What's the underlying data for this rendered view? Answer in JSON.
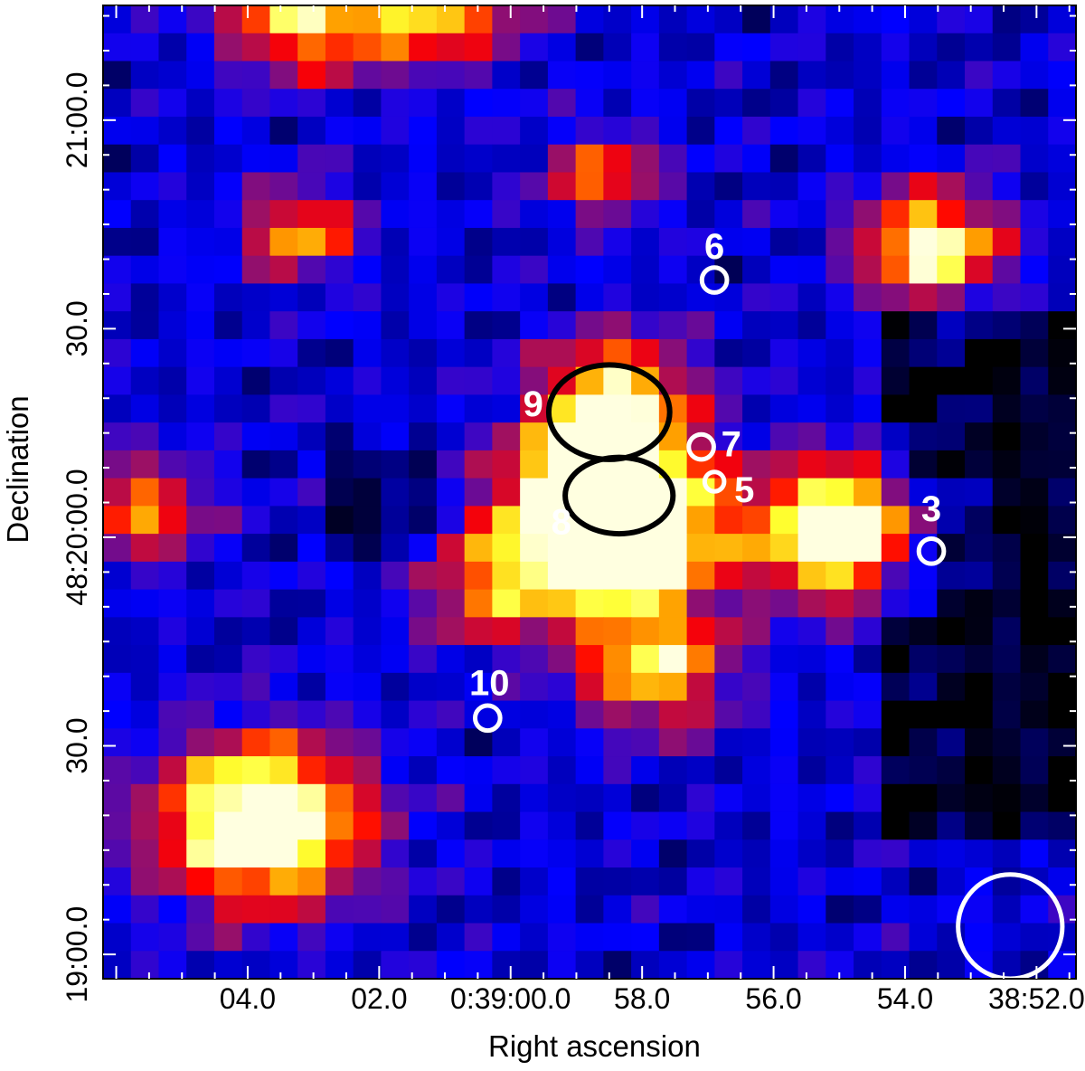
{
  "chart_data": {
    "type": "heatmap",
    "title": "",
    "xlabel": "Right ascension",
    "ylabel": "Declination",
    "x_ticks": [
      {
        "label": "04.0",
        "ra_sec": 4.0
      },
      {
        "label": "02.0",
        "ra_sec": 2.0
      },
      {
        "label": "0:39:00.0",
        "ra_sec": 0.0
      },
      {
        "label": "58.0",
        "ra_sec": -2.0
      },
      {
        "label": "56.0",
        "ra_sec": -4.0
      },
      {
        "label": "54.0",
        "ra_sec": -6.0
      },
      {
        "label": "38:52.0",
        "ra_sec": -8.0
      }
    ],
    "y_ticks": [
      {
        "label": "21:00.0",
        "dec_arcsec": 60
      },
      {
        "label": "30.0",
        "dec_arcsec": 30
      },
      {
        "label": "48:20:00.0",
        "dec_arcsec": 0
      },
      {
        "label": "30.0",
        "dec_arcsec": -30
      },
      {
        "label": "19:00.0",
        "dec_arcsec": -60
      }
    ],
    "xlim_ra_sec": [
      6.2,
      -8.6
    ],
    "ylim_dec_arcsec": [
      -63.5,
      76.5
    ],
    "colormap": [
      "#000000",
      "#0000ff",
      "#a01060",
      "#ff0000",
      "#ffa000",
      "#ffff30",
      "#ffffe0"
    ],
    "colormap_stops": [
      0,
      0.28,
      0.5,
      0.64,
      0.78,
      0.9,
      1
    ],
    "hotspots": [
      {
        "ra_sec": 3.8,
        "dec_arcsec": -41,
        "peak": 1.0,
        "sigma": 1.1
      },
      {
        "ra_sec": -1.6,
        "dec_arcsec": 0,
        "peak": 1.0,
        "sigma": 1.05
      },
      {
        "ra_sec": -1.4,
        "dec_arcsec": 8,
        "peak": 0.85,
        "sigma": 0.9
      },
      {
        "ra_sec": -5.0,
        "dec_arcsec": 1,
        "peak": 0.97,
        "sigma": 0.9
      },
      {
        "ra_sec": -1.6,
        "dec_arcsec": 21,
        "peak": 0.62,
        "sigma": 0.8
      },
      {
        "ra_sec": -2.2,
        "dec_arcsec": -19,
        "peak": 0.62,
        "sigma": 0.8
      },
      {
        "ra_sec": -6.4,
        "dec_arcsec": 42,
        "peak": 0.78,
        "sigma": 0.75
      },
      {
        "ra_sec": 3.2,
        "dec_arcsec": 75,
        "peak": 0.64,
        "sigma": 0.8
      },
      {
        "ra_sec": 1.2,
        "dec_arcsec": 78,
        "peak": 0.7,
        "sigma": 0.9
      },
      {
        "ra_sec": 3.2,
        "dec_arcsec": 44,
        "peak": 0.55,
        "sigma": 0.6
      },
      {
        "ra_sec": 5.6,
        "dec_arcsec": 4,
        "peak": 0.5,
        "sigma": 0.7
      },
      {
        "ra_sec": -1.4,
        "dec_arcsec": 52,
        "peak": 0.48,
        "sigma": 0.6
      },
      {
        "ra_sec": 0.3,
        "dec_arcsec": -7,
        "peak": 0.45,
        "sigma": 0.8
      }
    ],
    "sources": [
      {
        "id": "3",
        "ra_sec": -6.4,
        "dec_arcsec": -2,
        "r_arcsec": 1.8
      },
      {
        "id": "5",
        "ra_sec": -3.1,
        "dec_arcsec": 8,
        "r_arcsec": 1.4
      },
      {
        "id": "6",
        "ra_sec": -3.1,
        "dec_arcsec": 37,
        "r_arcsec": 1.8
      },
      {
        "id": "7",
        "ra_sec": -2.9,
        "dec_arcsec": 13,
        "r_arcsec": 1.8
      },
      {
        "id": "10",
        "ra_sec": 0.35,
        "dec_arcsec": -26,
        "r_arcsec": 1.8
      }
    ],
    "ellipses": [
      {
        "id": "9",
        "ra_sec": -1.5,
        "dec_arcsec": 18,
        "rx_sec": 0.92,
        "ry_arcsec": 6.8
      },
      {
        "id": "8",
        "ra_sec": -1.65,
        "dec_arcsec": 6,
        "rx_sec": 0.82,
        "ry_arcsec": 5.5
      }
    ],
    "beam_circle": {
      "ra_sec": -7.6,
      "dec_arcsec": -56,
      "r_arcsec": 7.5
    }
  }
}
